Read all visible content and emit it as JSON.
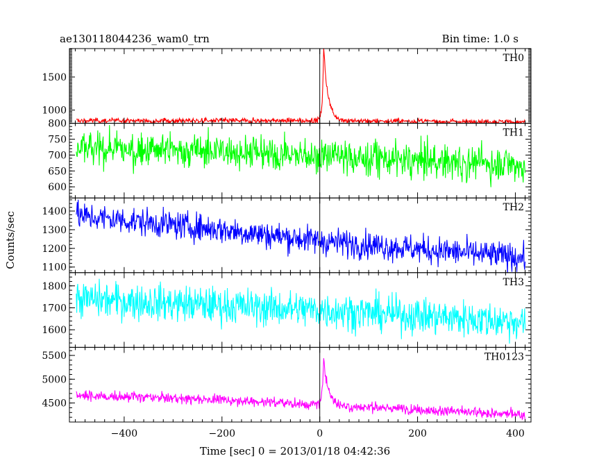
{
  "chart_data": {
    "type": "line",
    "title": "ae130118044236_wam0_trn",
    "subtitle": "Bin time: 1.0 s",
    "xlabel": "Time [sec] 0 = 2013/01/18 04:42:36",
    "ylabel": "Counts/sec",
    "grid": false,
    "xlim": [
      -512,
      432
    ],
    "x_ticks": [
      -400,
      -200,
      0,
      200,
      400
    ],
    "x_tick_labels": [
      "−400",
      "−200",
      "0",
      "200",
      "400"
    ],
    "x_data_range": [
      -498,
      420
    ],
    "zero_line_x": 0,
    "series": [
      {
        "name": "TH0",
        "color": "#ff0000",
        "ylim": [
          800,
          1930
        ],
        "y_ticks": [
          800,
          1000,
          1500
        ],
        "y_tick_labels": [
          "800",
          "1000",
          "1500"
        ],
        "baseline": [
          [
            -498,
            840
          ],
          [
            0,
            840
          ],
          [
            420,
            820
          ]
        ],
        "noise": 20,
        "peak": {
          "x": 8,
          "height": 1080,
          "rise": 2.5,
          "decay": 9
        }
      },
      {
        "name": "TH1",
        "color": "#00ff00",
        "ylim": [
          565,
          800
        ],
        "y_ticks": [
          600,
          650,
          700,
          750
        ],
        "y_tick_labels": [
          "600",
          "650",
          "700",
          "750"
        ],
        "baseline": [
          [
            -498,
            718
          ],
          [
            -200,
            712
          ],
          [
            0,
            695
          ],
          [
            420,
            668
          ]
        ],
        "noise": 28,
        "peak": {
          "x": 8,
          "height": 25,
          "rise": 2,
          "decay": 6
        }
      },
      {
        "name": "TH2",
        "color": "#0000ff",
        "ylim": [
          1070,
          1470
        ],
        "y_ticks": [
          1100,
          1200,
          1300,
          1400
        ],
        "y_tick_labels": [
          "1100",
          "1200",
          "1300",
          "1400"
        ],
        "baseline": [
          [
            -498,
            1375
          ],
          [
            -200,
            1300
          ],
          [
            0,
            1240
          ],
          [
            420,
            1150
          ]
        ],
        "noise": 38,
        "peak": null
      },
      {
        "name": "TH3",
        "color": "#00ffff",
        "ylim": [
          1520,
          1860
        ],
        "y_ticks": [
          1600,
          1700,
          1800
        ],
        "y_tick_labels": [
          "1600",
          "1700",
          "1800"
        ],
        "baseline": [
          [
            -498,
            1740
          ],
          [
            -200,
            1710
          ],
          [
            0,
            1690
          ],
          [
            420,
            1635
          ]
        ],
        "noise": 42,
        "peak": null
      },
      {
        "name": "TH0123",
        "color": "#ff00ff",
        "ylim": [
          4100,
          5670
        ],
        "y_ticks": [
          4500,
          5000,
          5500
        ],
        "y_tick_labels": [
          "4500",
          "5000",
          "5500"
        ],
        "baseline": [
          [
            -498,
            4660
          ],
          [
            -200,
            4570
          ],
          [
            0,
            4460
          ],
          [
            420,
            4250
          ]
        ],
        "noise": 55,
        "peak": {
          "x": 8,
          "height": 1050,
          "rise": 2.5,
          "decay": 9
        }
      }
    ]
  }
}
